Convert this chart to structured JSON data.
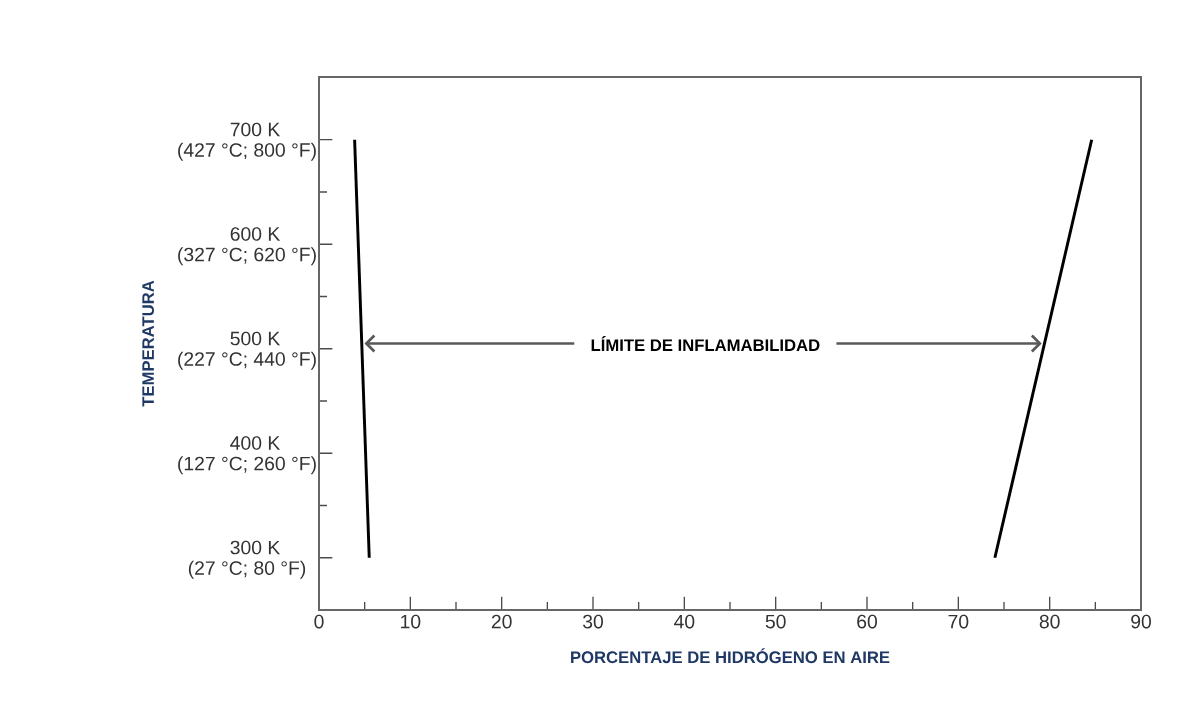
{
  "chart_data": {
    "type": "line",
    "xlabel": "PORCENTAJE DE HIDRÓGENO EN AIRE",
    "ylabel": "TEMPERATURA",
    "annotations": [
      "LÍMITE DE INFLAMABILIDAD",
      "(27 °C; 80 °F)",
      "(127 °C; 260 °F)",
      "(227 °C; 440 °F)",
      "(327 °C; 620 °F)",
      "(427 °C; 800 °F)"
    ],
    "series": [
      {
        "color": "#000000",
        "x": [
          3.9,
          5.5
        ],
        "values": [
          700,
          300
        ]
      },
      {
        "color": "#000000",
        "x": [
          84.6,
          74.0
        ],
        "values": [
          700,
          300
        ]
      }
    ],
    "xlim": [
      0,
      90
    ],
    "ylim": [
      250,
      760
    ],
    "xticks": [
      0,
      10,
      20,
      30,
      40,
      50,
      60,
      70,
      80,
      90
    ],
    "yticks": [
      {
        "value": 300,
        "label": "300 K"
      },
      {
        "value": 400,
        "label": "400 K"
      },
      {
        "value": 500,
        "label": "500 K"
      },
      {
        "value": 600,
        "label": "600 K"
      },
      {
        "value": 700,
        "label": "700 K"
      }
    ],
    "grid": false,
    "marker": "none",
    "line_style": "solid"
  }
}
